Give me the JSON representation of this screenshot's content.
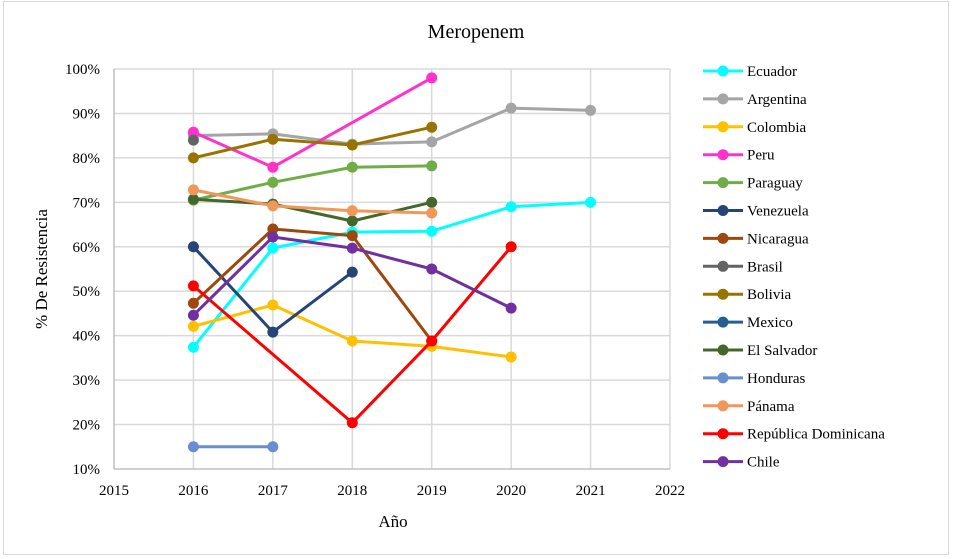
{
  "chart_data": {
    "type": "line",
    "title": "Meropenem",
    "xlabel": "Año",
    "ylabel": "% De Resistencia",
    "xlim": [
      2015,
      2022
    ],
    "ylim": [
      10,
      100
    ],
    "x_ticks": [
      "2015",
      "2016",
      "2017",
      "2018",
      "2019",
      "2020",
      "2021",
      "2022"
    ],
    "y_ticks": [
      "10%",
      "20%",
      "30%",
      "40%",
      "50%",
      "60%",
      "70%",
      "80%",
      "90%",
      "100%"
    ],
    "grid": true,
    "legend_position": "right",
    "series": [
      {
        "name": "Ecuador",
        "color": "#00FFFF",
        "points": [
          [
            2016,
            37.4
          ],
          [
            2017,
            59.7
          ],
          [
            2018,
            63.3
          ],
          [
            2019,
            63.5
          ],
          [
            2020,
            69.0
          ],
          [
            2021,
            70.0
          ]
        ]
      },
      {
        "name": "Argentina",
        "color": "#A5A5A5",
        "points": [
          [
            2016,
            85.0
          ],
          [
            2017,
            85.4
          ],
          [
            2018,
            83.1
          ],
          [
            2019,
            83.6
          ],
          [
            2020,
            91.2
          ],
          [
            2021,
            90.7
          ]
        ]
      },
      {
        "name": "Colombia",
        "color": "#FFC000",
        "points": [
          [
            2016,
            42.1
          ],
          [
            2017,
            46.9
          ],
          [
            2018,
            38.8
          ],
          [
            2019,
            37.6
          ],
          [
            2020,
            35.2
          ]
        ]
      },
      {
        "name": "Peru",
        "color": "#FF33CC",
        "points": [
          [
            2016,
            85.8
          ],
          [
            2017,
            77.9
          ],
          [
            2019,
            98.0
          ]
        ]
      },
      {
        "name": "Paraguay",
        "color": "#70AD47",
        "points": [
          [
            2016,
            70.5
          ],
          [
            2017,
            74.5
          ],
          [
            2018,
            77.9
          ],
          [
            2019,
            78.2
          ]
        ]
      },
      {
        "name": "Venezuela",
        "color": "#264478",
        "points": [
          [
            2016,
            60.0
          ],
          [
            2017,
            40.8
          ],
          [
            2018,
            54.3
          ]
        ]
      },
      {
        "name": "Nicaragua",
        "color": "#9E480E",
        "points": [
          [
            2016,
            47.3
          ],
          [
            2017,
            64.0
          ],
          [
            2018,
            62.5
          ],
          [
            2019,
            38.8
          ]
        ]
      },
      {
        "name": "Brasil",
        "color": "#636363",
        "points": [
          [
            2016,
            84.0
          ]
        ]
      },
      {
        "name": "Bolivia",
        "color": "#997300",
        "points": [
          [
            2016,
            80.0
          ],
          [
            2017,
            84.2
          ],
          [
            2018,
            82.9
          ],
          [
            2019,
            86.9
          ]
        ]
      },
      {
        "name": "Mexico",
        "color": "#255E91",
        "points": []
      },
      {
        "name": "El Salvador",
        "color": "#43682B",
        "points": [
          [
            2016,
            70.7
          ],
          [
            2017,
            69.6
          ],
          [
            2018,
            65.8
          ],
          [
            2019,
            70.0
          ]
        ]
      },
      {
        "name": "Honduras",
        "color": "#698ED0",
        "points": [
          [
            2016,
            15.0
          ],
          [
            2017,
            15.0
          ]
        ]
      },
      {
        "name": "Pánama",
        "color": "#F1975A",
        "points": [
          [
            2016,
            72.8
          ],
          [
            2017,
            69.2
          ],
          [
            2018,
            68.1
          ],
          [
            2019,
            67.6
          ]
        ]
      },
      {
        "name": "República Dominicana",
        "color": "#FF0000",
        "points": [
          [
            2016,
            51.2
          ],
          [
            2018,
            20.4
          ],
          [
            2019,
            38.8
          ],
          [
            2020,
            60.0
          ]
        ]
      },
      {
        "name": "Chile",
        "color": "#7030A0",
        "points": [
          [
            2016,
            44.6
          ],
          [
            2017,
            62.2
          ],
          [
            2018,
            59.7
          ],
          [
            2019,
            55.0
          ],
          [
            2020,
            46.2
          ]
        ]
      }
    ]
  }
}
